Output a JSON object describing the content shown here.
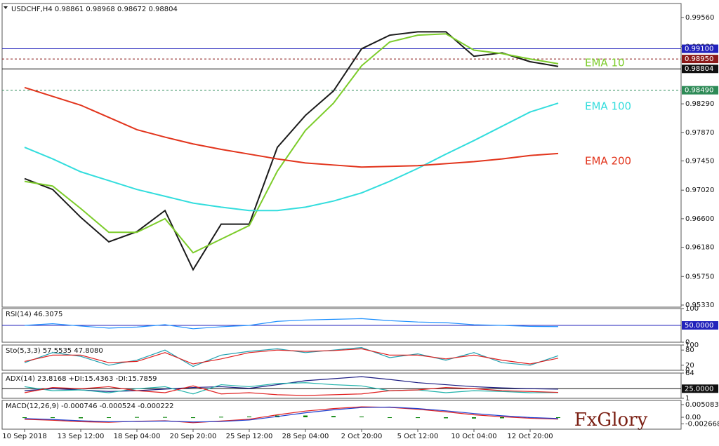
{
  "chart_data": [
    {
      "type": "line",
      "title": "USDCHF,H4  0.98861 0.98968 0.98672 0.98804",
      "ylim": [
        0.95299,
        0.99766
      ],
      "yticks": [
        {
          "value": 0.9956,
          "label": "0.99560"
        },
        {
          "value": 0.9913,
          "label": "0.99130"
        },
        {
          "value": 0.9829,
          "label": "0.98290"
        },
        {
          "value": 0.9787,
          "label": "0.97870"
        },
        {
          "value": 0.9745,
          "label": "0.97450"
        },
        {
          "value": 0.9702,
          "label": "0.97020"
        },
        {
          "value": 0.966,
          "label": "0.96600"
        },
        {
          "value": 0.9618,
          "label": "0.96180"
        },
        {
          "value": 0.9575,
          "label": "0.95750"
        },
        {
          "value": 0.9533,
          "label": "0.95330"
        }
      ],
      "levels": [
        {
          "value": 0.991,
          "label": "0.99100",
          "color": "#2222bb",
          "style": "solid"
        },
        {
          "value": 0.9895,
          "label": "0.98950",
          "color": "#8b1a1a",
          "style": "dashed"
        },
        {
          "value": 0.98804,
          "label": "0.98804",
          "color": "#111111",
          "style": "solid"
        },
        {
          "value": 0.9849,
          "label": "0.98490",
          "color": "#2e8b57",
          "style": "dashed"
        }
      ],
      "series": [
        {
          "color": "#1a1a1a",
          "values": [
            0.9719,
            0.9703,
            0.9662,
            0.9626,
            0.9641,
            0.9672,
            0.9585,
            0.9652,
            0.9652,
            0.9765,
            0.9812,
            0.9848,
            0.991,
            0.993,
            0.9935,
            0.9935,
            0.9899,
            0.9904,
            0.9891,
            0.9884
          ]
        },
        {
          "name": "EMA 10",
          "color": "#7ccc2a",
          "values": [
            0.9715,
            0.9708,
            0.9675,
            0.964,
            0.964,
            0.966,
            0.961,
            0.963,
            0.965,
            0.973,
            0.979,
            0.983,
            0.9885,
            0.992,
            0.993,
            0.9932,
            0.9908,
            0.9903,
            0.9895,
            0.9888
          ]
        },
        {
          "name": "EMA 100",
          "color": "#33dddd",
          "values": [
            0.9765,
            0.9748,
            0.9729,
            0.9716,
            0.9703,
            0.9693,
            0.9683,
            0.9677,
            0.9672,
            0.9672,
            0.9677,
            0.9686,
            0.9698,
            0.9715,
            0.9734,
            0.9755,
            0.9775,
            0.9796,
            0.9817,
            0.983
          ]
        },
        {
          "name": "EMA 200",
          "color": "#e2341c",
          "values": [
            0.9853,
            0.984,
            0.9827,
            0.9809,
            0.9791,
            0.978,
            0.977,
            0.9762,
            0.9755,
            0.9748,
            0.9742,
            0.9739,
            0.9736,
            0.9737,
            0.9738,
            0.9741,
            0.9744,
            0.9748,
            0.9753,
            0.9756
          ]
        }
      ]
    },
    {
      "type": "line",
      "title": "RSI(14) 46.3075",
      "ylim": [
        0,
        100
      ],
      "yticks": [
        100,
        0
      ],
      "levels": [
        {
          "value": 50,
          "label": "50.0000",
          "color": "#2222bb",
          "style": "solid"
        }
      ],
      "series": [
        {
          "color": "#1e90ff",
          "values": [
            50,
            55,
            48,
            42,
            45,
            52,
            40,
            46,
            50,
            62,
            66,
            68,
            70,
            64,
            60,
            58,
            52,
            50,
            47,
            46.3075
          ]
        }
      ]
    },
    {
      "type": "line",
      "title": "Sto(5,3,3) 57.5535 47.8080",
      "ylim": [
        0,
        100
      ],
      "yticks": [
        100,
        80,
        20,
        0
      ],
      "series": [
        {
          "color": "#20a0b0",
          "values": [
            30,
            70,
            55,
            20,
            40,
            80,
            15,
            60,
            75,
            85,
            70,
            80,
            90,
            50,
            65,
            40,
            70,
            30,
            20,
            57.5535
          ]
        },
        {
          "color": "#e02020",
          "values": [
            35,
            60,
            60,
            30,
            35,
            70,
            25,
            45,
            70,
            80,
            75,
            78,
            85,
            60,
            60,
            45,
            60,
            40,
            25,
            47.808
          ]
        }
      ]
    },
    {
      "type": "line",
      "title": "ADX(14) 23.8168 +DI:15.4363 -DI:15.7859",
      "ylim": [
        1,
        64
      ],
      "yticks": [
        64,
        1
      ],
      "levels": [
        {
          "value": 25,
          "label": "25.0000",
          "color": "#111111",
          "style": "solid"
        }
      ],
      "series": [
        {
          "color": "#1a1a80",
          "values": [
            20,
            25,
            22,
            18,
            20,
            24,
            28,
            30,
            26,
            35,
            45,
            50,
            55,
            48,
            40,
            35,
            30,
            27,
            25,
            23.8168
          ]
        },
        {
          "color": "#20b2aa",
          "values": [
            30,
            20,
            22,
            15,
            25,
            30,
            12,
            35,
            30,
            38,
            40,
            35,
            32,
            20,
            22,
            15,
            20,
            18,
            15,
            15.4363
          ]
        },
        {
          "color": "#e02020",
          "values": [
            15,
            28,
            25,
            30,
            20,
            15,
            32,
            12,
            15,
            10,
            8,
            10,
            12,
            20,
            22,
            28,
            25,
            20,
            18,
            15.7859
          ]
        }
      ]
    },
    {
      "type": "line",
      "title": "MACD(12,26,9) -0.000746 -0.000524 -0.000222",
      "ylim": [
        -0.00479,
        0.00678
      ],
      "yticks": [
        0.005083,
        {
          "value": 0,
          "label": "0.00"
        },
        -0.002668
      ],
      "categories": [
        "10 Sep 2018",
        null,
        "13 Sep 12:00",
        null,
        "18 Sep 04:00",
        null,
        "20 Sep 20:00",
        null,
        "25 Sep 12:00",
        null,
        "28 Sep 04:00",
        null,
        "2 Oct 20:00",
        null,
        "5 Oct 12:00",
        null,
        "10 Oct 04:00",
        null,
        "12 Oct 20:00",
        null
      ],
      "series": [
        {
          "kind": "bar",
          "color": "#008000",
          "values": [
            -0.0003,
            -0.0003,
            -0.0004,
            -0.0002,
            0.0001,
            0.0001,
            -0.0003,
            0.0002,
            0.0003,
            0.0007,
            0.0007,
            0.0005,
            0.0003,
            -0.0001,
            -0.0003,
            -0.0004,
            -0.0005,
            -0.0004,
            -0.0003,
            -0.000222
          ]
        },
        {
          "color": "#e02020",
          "values": [
            -0.0008,
            -0.0012,
            -0.0018,
            -0.002,
            -0.0016,
            -0.0014,
            -0.0022,
            -0.0015,
            -0.0008,
            0.001,
            0.0025,
            0.0035,
            0.0042,
            0.004,
            0.0032,
            0.0022,
            0.001,
            0.0002,
            -0.0004,
            -0.000746
          ]
        },
        {
          "color": "#2040d0",
          "values": [
            -0.0005,
            -0.0009,
            -0.0014,
            -0.0018,
            -0.0017,
            -0.0015,
            -0.0019,
            -0.0017,
            -0.0011,
            0.0003,
            0.0018,
            0.003,
            0.0039,
            0.0041,
            0.0035,
            0.0026,
            0.0015,
            0.0006,
            -0.0001,
            -0.000524
          ]
        }
      ]
    }
  ],
  "logo": "FxGlory"
}
